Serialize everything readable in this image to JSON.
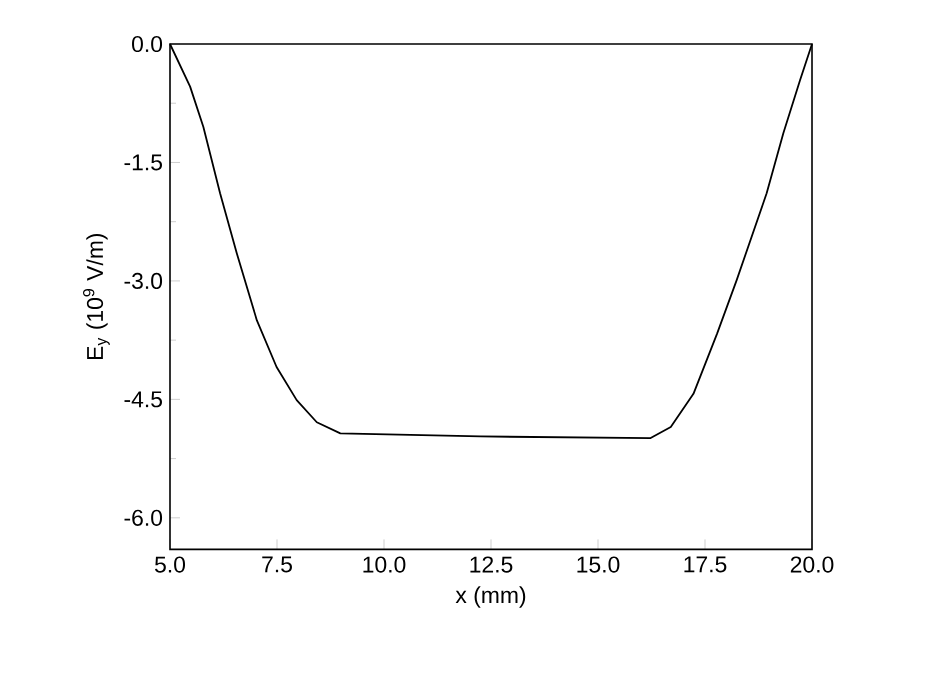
{
  "chart_data": {
    "type": "line",
    "xlabel": "x (mm)",
    "ylabel": "E$_{y}$ (10$^{9}$ V/m)",
    "x": [
      5.0,
      5.47,
      5.78,
      6.17,
      6.56,
      7.03,
      7.49,
      7.96,
      8.43,
      8.98,
      12.25,
      16.23,
      16.7,
      17.23,
      17.78,
      18.24,
      18.94,
      19.33,
      19.72,
      20.0
    ],
    "series": [
      {
        "color": "#000000",
        "values": [
          0,
          -0.54,
          -1.05,
          -1.89,
          -2.65,
          -3.5,
          -4.09,
          -4.51,
          -4.79,
          -4.93,
          -4.97,
          -4.99,
          -4.85,
          -4.43,
          -3.67,
          -2.99,
          -1.89,
          -1.13,
          -0.46,
          0
        ]
      }
    ],
    "xlim": [
      5.0,
      20.0
    ],
    "ylim": [
      -6.4,
      0.0
    ],
    "xticks": [
      {
        "value": 5.0,
        "label": "5.0"
      },
      {
        "value": 7.5,
        "label": "7.5"
      },
      {
        "value": 10.0,
        "label": "10.0"
      },
      {
        "value": 12.5,
        "label": "12.5"
      },
      {
        "value": 15.0,
        "label": "15.0"
      },
      {
        "value": 17.5,
        "label": "17.5"
      },
      {
        "value": 20.0,
        "label": "20.0"
      }
    ],
    "yticks": [
      {
        "value": 0.0,
        "label": "0.0"
      },
      {
        "value": -1.5,
        "label": "-1.5"
      },
      {
        "value": -3.0,
        "label": "-3.0"
      },
      {
        "value": -4.5,
        "label": "-4.5"
      },
      {
        "value": -6.0,
        "label": "-6.0"
      }
    ],
    "grid": false,
    "marker": "none",
    "line_style": "solid"
  }
}
